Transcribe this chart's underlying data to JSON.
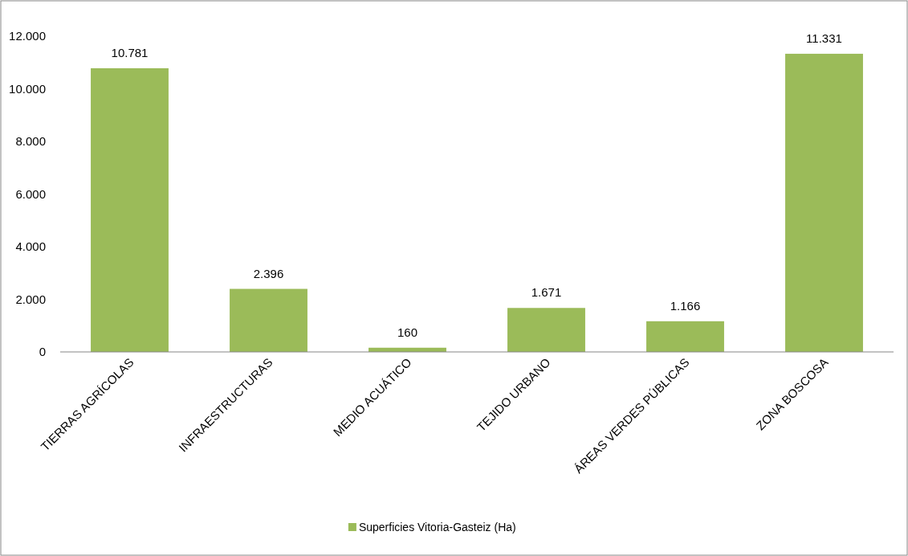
{
  "chart_data": {
    "type": "bar",
    "categories": [
      "TIERRAS AGRÍCOLAS",
      "INFRAESTRUCTURAS",
      "MEDIO ACUÁTICO",
      "TEJIDO URBANO",
      "ÁREAS VERDES PÚBLICAS",
      "ZONA BOSCOSA"
    ],
    "series": [
      {
        "name": "Superficies Vitoria-Gasteiz (Ha)",
        "color": "#9bbb59",
        "values": [
          10781,
          2396,
          160,
          1671,
          1166,
          11331
        ],
        "value_labels": [
          "10.781",
          "2.396",
          "160",
          "1.671",
          "1.166",
          "11.331"
        ]
      }
    ],
    "ylim": [
      0,
      12000
    ],
    "yticks": [
      0,
      {
        "value": 2000,
        "label": "2.000"
      },
      {
        "value": 4000,
        "label": "4.000"
      },
      {
        "value": 6000,
        "label": "6.000"
      },
      {
        "value": 8000,
        "label": "8.000"
      },
      {
        "value": 10000,
        "label": "10.000"
      },
      {
        "value": 12000,
        "label": "12.000"
      }
    ],
    "grid": false,
    "legend": "bottom"
  }
}
